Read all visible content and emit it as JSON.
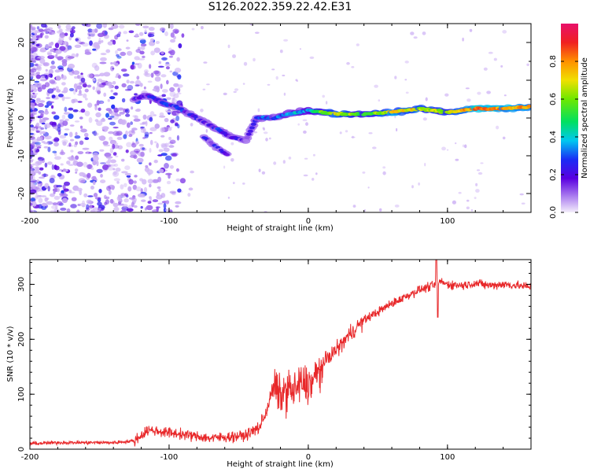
{
  "title": "S126.2022.359.22.42.E31",
  "chart_data": [
    {
      "type": "heatmap",
      "xlabel": "Height of straight line (km)",
      "ylabel": "Frequency (Hz)",
      "xlim": [
        -200,
        160
      ],
      "ylim": [
        -25,
        25
      ],
      "xticks": [
        -200,
        -100,
        0,
        100
      ],
      "yticks": [
        -20,
        -10,
        0,
        10,
        20
      ],
      "colorbar": {
        "label": "Normalized spectral amplitude",
        "range": [
          0,
          1
        ],
        "ticks": [
          "0.0",
          "0.2",
          "0.4",
          "0.6",
          "0.8"
        ]
      },
      "doppler_trace": [
        {
          "x": -125,
          "y": 5,
          "amp": 0.18
        },
        {
          "x": -115,
          "y": 6,
          "amp": 0.22
        },
        {
          "x": -105,
          "y": 4,
          "amp": 0.25
        },
        {
          "x": -95,
          "y": 3,
          "amp": 0.22
        },
        {
          "x": -85,
          "y": 1,
          "amp": 0.2
        },
        {
          "x": -75,
          "y": -1,
          "amp": 0.2
        },
        {
          "x": -65,
          "y": -3,
          "amp": 0.22
        },
        {
          "x": -55,
          "y": -5,
          "amp": 0.18
        },
        {
          "x": -45,
          "y": -6,
          "amp": 0.15
        },
        {
          "x": -37,
          "y": 0,
          "amp": 0.25
        },
        {
          "x": -25,
          "y": 0,
          "amp": 0.3
        },
        {
          "x": -15,
          "y": 1,
          "amp": 0.35
        },
        {
          "x": 0,
          "y": 2,
          "amp": 0.4
        },
        {
          "x": 20,
          "y": 1,
          "amp": 0.7
        },
        {
          "x": 40,
          "y": 1,
          "amp": 0.5
        },
        {
          "x": 60,
          "y": 1.5,
          "amp": 0.75
        },
        {
          "x": 80,
          "y": 2.5,
          "amp": 0.65
        },
        {
          "x": 100,
          "y": 1.5,
          "amp": 0.6
        },
        {
          "x": 120,
          "y": 2.5,
          "amp": 0.85
        },
        {
          "x": 140,
          "y": 2.5,
          "amp": 0.8
        },
        {
          "x": 160,
          "y": 3,
          "amp": 0.75
        }
      ],
      "secondary_trace": [
        {
          "x": -75,
          "y": -5,
          "amp": 0.2
        },
        {
          "x": -65,
          "y": -8,
          "amp": 0.18
        },
        {
          "x": -57,
          "y": -10,
          "amp": 0.15
        }
      ]
    },
    {
      "type": "line",
      "xlabel": "Height of straight line (km)",
      "ylabel": "SNR (10 * v/v)",
      "xlim": [
        -200,
        160
      ],
      "ylim": [
        0,
        345
      ],
      "xticks": [
        -200,
        -100,
        0,
        100
      ],
      "yticks": [
        0,
        100,
        200,
        300
      ],
      "series": [
        {
          "color": "#e8282a",
          "x": [
            -200,
            -180,
            -160,
            -140,
            -125,
            -115,
            -100,
            -85,
            -70,
            -60,
            -45,
            -35,
            -30,
            -25,
            -20,
            -15,
            -10,
            -5,
            0,
            5,
            10,
            15,
            20,
            30,
            40,
            50,
            60,
            70,
            80,
            90,
            95,
            100,
            110,
            120,
            130,
            140,
            150,
            160
          ],
          "values": [
            10,
            12,
            12,
            12,
            15,
            35,
            30,
            25,
            20,
            22,
            25,
            40,
            70,
            115,
            95,
            110,
            105,
            120,
            115,
            130,
            150,
            170,
            180,
            210,
            235,
            250,
            265,
            278,
            290,
            298,
            305,
            300,
            298,
            302,
            298,
            300,
            298,
            295
          ]
        }
      ]
    }
  ]
}
